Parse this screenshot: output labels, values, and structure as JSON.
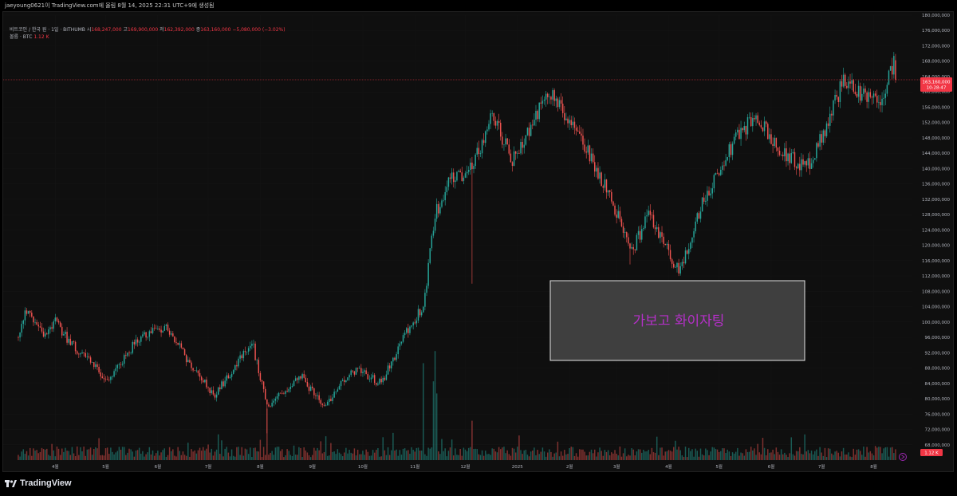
{
  "header": {
    "caption": "jaeyoung0621이 TradingView.com에 올림 8월 14, 2025 22:31 UTC+9에 생성됨"
  },
  "legend": {
    "symbol": "비트코인 / 한국 원 · 1일 · BITHUMB",
    "o_label": "시",
    "o_value": "168,247,000",
    "h_label": "고",
    "h_value": "169,900,000",
    "l_label": "저",
    "l_value": "162,392,000",
    "c_label": "종",
    "c_value": "163,160,000",
    "change": "−5,080,000 (−3.02%)",
    "volume_label": "볼륨 · BTC",
    "volume_value": "1.12 K"
  },
  "price_tag": {
    "value": "163,160,000",
    "countdown": "10:28:47"
  },
  "volume_tag": "1.12 K",
  "annotation": {
    "text": "가보고 화이자팅"
  },
  "brand": {
    "name": "TradingView"
  },
  "colors": {
    "up": "#26a69a",
    "down": "#ef5350",
    "annotation_text": "#b530c8",
    "annotation_bg": "#3f3f3f",
    "price_tag": "#f23645"
  },
  "chart_data": {
    "type": "candlestick",
    "title": "",
    "y_axis": {
      "min": 64000000,
      "max": 180000000,
      "ticks": [
        "180,000,000",
        "176,000,000",
        "172,000,000",
        "168,000,000",
        "164,000,000",
        "160,000,000",
        "156,000,000",
        "152,000,000",
        "148,000,000",
        "144,000,000",
        "140,000,000",
        "136,000,000",
        "132,000,000",
        "128,000,000",
        "124,000,000",
        "120,000,000",
        "116,000,000",
        "112,000,000",
        "108,000,000",
        "104,000,000",
        "100,000,000",
        "96,000,000",
        "92,000,000",
        "88,000,000",
        "84,000,000",
        "80,000,000",
        "76,000,000",
        "72,000,000",
        "68,000,000"
      ]
    },
    "x_ticks": [
      "4월",
      "5월",
      "6월",
      "7월",
      "8월",
      "9월",
      "10월",
      "11월",
      "12월",
      "2025",
      "2월",
      "3월",
      "4월",
      "5월",
      "6월",
      "7월",
      "8월"
    ],
    "approx_close_path": [
      {
        "date": "2024-03-10",
        "close": 96000000
      },
      {
        "date": "2024-03-14",
        "close": 103000000
      },
      {
        "date": "2024-03-24",
        "close": 97000000
      },
      {
        "date": "2024-04-01",
        "close": 100000000
      },
      {
        "date": "2024-04-13",
        "close": 93000000
      },
      {
        "date": "2024-04-19",
        "close": 92000000
      },
      {
        "date": "2024-05-01",
        "close": 84000000
      },
      {
        "date": "2024-05-21",
        "close": 96000000
      },
      {
        "date": "2024-06-06",
        "close": 98500000
      },
      {
        "date": "2024-06-25",
        "close": 86000000
      },
      {
        "date": "2024-07-05",
        "close": 81000000
      },
      {
        "date": "2024-07-27",
        "close": 95000000
      },
      {
        "date": "2024-08-05",
        "close": 78000000
      },
      {
        "date": "2024-08-25",
        "close": 86000000
      },
      {
        "date": "2024-09-07",
        "close": 78000000
      },
      {
        "date": "2024-09-27",
        "close": 88000000
      },
      {
        "date": "2024-10-12",
        "close": 84000000
      },
      {
        "date": "2024-10-29",
        "close": 99000000
      },
      {
        "date": "2024-11-06",
        "close": 104000000
      },
      {
        "date": "2024-11-13",
        "close": 128000000
      },
      {
        "date": "2024-11-22",
        "close": 137000000
      },
      {
        "date": "2024-12-05",
        "close": 140000000
      },
      {
        "date": "2024-12-17",
        "close": 154000000
      },
      {
        "date": "2024-12-29",
        "close": 142000000
      },
      {
        "date": "2025-01-20",
        "close": 160000000
      },
      {
        "date": "2025-02-05",
        "close": 150000000
      },
      {
        "date": "2025-02-25",
        "close": 133000000
      },
      {
        "date": "2025-03-10",
        "close": 118000000
      },
      {
        "date": "2025-03-20",
        "close": 128000000
      },
      {
        "date": "2025-04-07",
        "close": 113000000
      },
      {
        "date": "2025-04-22",
        "close": 132000000
      },
      {
        "date": "2025-05-10",
        "close": 147000000
      },
      {
        "date": "2025-05-23",
        "close": 154000000
      },
      {
        "date": "2025-06-05",
        "close": 145000000
      },
      {
        "date": "2025-06-22",
        "close": 140000000
      },
      {
        "date": "2025-07-01",
        "close": 148000000
      },
      {
        "date": "2025-07-14",
        "close": 163000000
      },
      {
        "date": "2025-07-25",
        "close": 159000000
      },
      {
        "date": "2025-08-06",
        "close": 158000000
      },
      {
        "date": "2025-08-13",
        "close": 168247000
      },
      {
        "date": "2025-08-14",
        "close": 163160000
      }
    ],
    "last": {
      "open": 168247000,
      "high": 169900000,
      "low": 162392000,
      "close": 163160000
    }
  }
}
